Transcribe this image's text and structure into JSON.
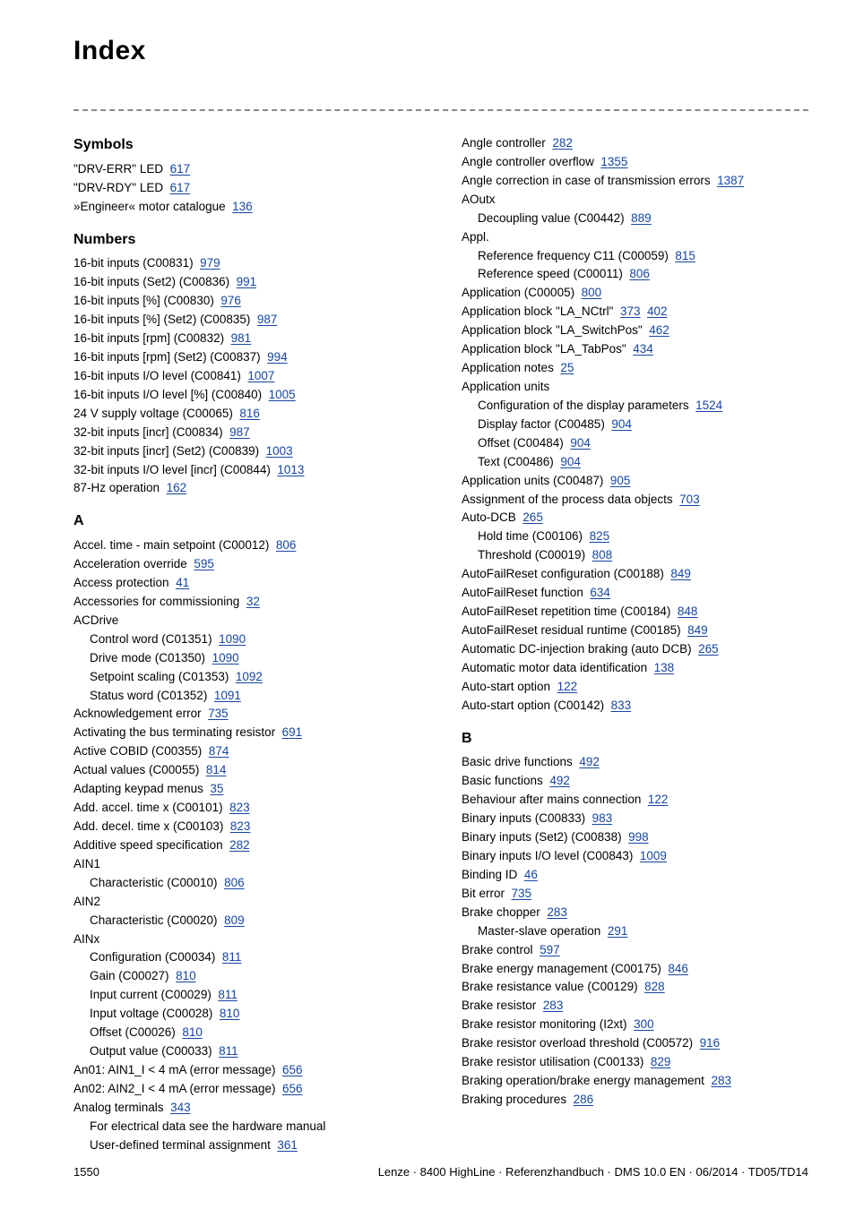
{
  "title": "Index",
  "footer": {
    "page": "1550",
    "doc": "Lenze · 8400 HighLine · Referenzhandbuch · DMS 10.0 EN · 06/2014 · TD05/TD14"
  },
  "colors": {
    "link": "#1646a0",
    "text": "#000000",
    "bg": "#ffffff",
    "dash": "#888888"
  },
  "left": [
    {
      "type": "head",
      "text": "Symbols"
    },
    {
      "type": "line",
      "text": "\"DRV-ERR\" LED",
      "refs": [
        "617"
      ]
    },
    {
      "type": "line",
      "text": "\"DRV-RDY\" LED",
      "refs": [
        "617"
      ]
    },
    {
      "type": "line",
      "text": "»Engineer« motor catalogue",
      "refs": [
        "136"
      ]
    },
    {
      "type": "head",
      "text": "Numbers"
    },
    {
      "type": "line",
      "text": "16-bit inputs (C00831)",
      "refs": [
        "979"
      ]
    },
    {
      "type": "line",
      "text": "16-bit inputs (Set2) (C00836)",
      "refs": [
        "991"
      ]
    },
    {
      "type": "line",
      "text": "16-bit inputs [%] (C00830)",
      "refs": [
        "976"
      ]
    },
    {
      "type": "line",
      "text": "16-bit inputs [%] (Set2) (C00835)",
      "refs": [
        "987"
      ]
    },
    {
      "type": "line",
      "text": "16-bit inputs [rpm] (C00832)",
      "refs": [
        "981"
      ]
    },
    {
      "type": "line",
      "text": "16-bit inputs [rpm] (Set2) (C00837)",
      "refs": [
        "994"
      ]
    },
    {
      "type": "line",
      "text": "16-bit inputs I/O level (C00841)",
      "refs": [
        "1007"
      ]
    },
    {
      "type": "line",
      "text": "16-bit inputs I/O level [%] (C00840)",
      "refs": [
        "1005"
      ]
    },
    {
      "type": "line",
      "text": "24 V supply voltage (C00065)",
      "refs": [
        "816"
      ]
    },
    {
      "type": "line",
      "text": "32-bit inputs [incr] (C00834)",
      "refs": [
        "987"
      ]
    },
    {
      "type": "line",
      "text": "32-bit inputs [incr] (Set2) (C00839)",
      "refs": [
        "1003"
      ]
    },
    {
      "type": "line",
      "text": "32-bit inputs I/O level [incr] (C00844)",
      "refs": [
        "1013"
      ]
    },
    {
      "type": "line",
      "text": "87-Hz operation",
      "refs": [
        "162"
      ]
    },
    {
      "type": "head",
      "text": "A"
    },
    {
      "type": "line",
      "text": "Accel. time - main setpoint (C00012)",
      "refs": [
        "806"
      ]
    },
    {
      "type": "line",
      "text": "Acceleration override",
      "refs": [
        "595"
      ]
    },
    {
      "type": "line",
      "text": "Access protection",
      "refs": [
        "41"
      ]
    },
    {
      "type": "line",
      "text": "Accessories for commissioning",
      "refs": [
        "32"
      ]
    },
    {
      "type": "line",
      "text": "ACDrive"
    },
    {
      "type": "sub",
      "text": "Control word (C01351)",
      "refs": [
        "1090"
      ]
    },
    {
      "type": "sub",
      "text": "Drive mode (C01350)",
      "refs": [
        "1090"
      ]
    },
    {
      "type": "sub",
      "text": "Setpoint scaling (C01353)",
      "refs": [
        "1092"
      ]
    },
    {
      "type": "sub",
      "text": "Status word (C01352)",
      "refs": [
        "1091"
      ]
    },
    {
      "type": "line",
      "text": "Acknowledgement error",
      "refs": [
        "735"
      ]
    },
    {
      "type": "line",
      "text": "Activating the bus terminating resistor",
      "refs": [
        "691"
      ]
    },
    {
      "type": "line",
      "text": "Active COBID (C00355)",
      "refs": [
        "874"
      ]
    },
    {
      "type": "line",
      "text": "Actual values (C00055)",
      "refs": [
        "814"
      ]
    },
    {
      "type": "line",
      "text": "Adapting keypad menus",
      "refs": [
        "35"
      ]
    },
    {
      "type": "line",
      "text": "Add. accel. time x (C00101)",
      "refs": [
        "823"
      ]
    },
    {
      "type": "line",
      "text": "Add. decel. time x (C00103)",
      "refs": [
        "823"
      ]
    },
    {
      "type": "line",
      "text": "Additive speed specification",
      "refs": [
        "282"
      ]
    },
    {
      "type": "line",
      "text": "AIN1"
    },
    {
      "type": "sub",
      "text": "Characteristic (C00010)",
      "refs": [
        "806"
      ]
    },
    {
      "type": "line",
      "text": "AIN2"
    },
    {
      "type": "sub",
      "text": "Characteristic (C00020)",
      "refs": [
        "809"
      ]
    },
    {
      "type": "line",
      "text": "AINx"
    },
    {
      "type": "sub",
      "text": "Configuration (C00034)",
      "refs": [
        "811"
      ]
    },
    {
      "type": "sub",
      "text": "Gain (C00027)",
      "refs": [
        "810"
      ]
    },
    {
      "type": "sub",
      "text": "Input current (C00029)",
      "refs": [
        "811"
      ]
    },
    {
      "type": "sub",
      "text": "Input voltage (C00028)",
      "refs": [
        "810"
      ]
    },
    {
      "type": "sub",
      "text": "Offset (C00026)",
      "refs": [
        "810"
      ]
    },
    {
      "type": "sub",
      "text": "Output value (C00033)",
      "refs": [
        "811"
      ]
    },
    {
      "type": "line",
      "text": "An01: AIN1_I < 4 mA (error message)",
      "refs": [
        "656"
      ]
    },
    {
      "type": "line",
      "text": "An02: AIN2_I < 4 mA (error message)",
      "refs": [
        "656"
      ]
    },
    {
      "type": "line",
      "text": "Analog terminals",
      "refs": [
        "343"
      ]
    },
    {
      "type": "sub",
      "text": "For electrical data see the hardware manual"
    },
    {
      "type": "sub",
      "text": "User-defined terminal assignment",
      "refs": [
        "361"
      ]
    }
  ],
  "right": [
    {
      "type": "line",
      "text": "Angle controller",
      "refs": [
        "282"
      ]
    },
    {
      "type": "line",
      "text": "Angle controller overflow",
      "refs": [
        "1355"
      ]
    },
    {
      "type": "line",
      "text": "Angle correction in case of transmission errors",
      "refs": [
        "1387"
      ]
    },
    {
      "type": "line",
      "text": "AOutx"
    },
    {
      "type": "sub",
      "text": "Decoupling value (C00442)",
      "refs": [
        "889"
      ]
    },
    {
      "type": "line",
      "text": "Appl."
    },
    {
      "type": "sub",
      "text": "Reference frequency C11 (C00059)",
      "refs": [
        "815"
      ]
    },
    {
      "type": "sub",
      "text": "Reference speed (C00011)",
      "refs": [
        "806"
      ]
    },
    {
      "type": "line",
      "text": "Application (C00005)",
      "refs": [
        "800"
      ]
    },
    {
      "type": "line",
      "text": "Application block \"LA_NCtrl\"",
      "refs": [
        "373",
        "402"
      ]
    },
    {
      "type": "line",
      "text": "Application block \"LA_SwitchPos\"",
      "refs": [
        "462"
      ]
    },
    {
      "type": "line",
      "text": "Application block \"LA_TabPos\"",
      "refs": [
        "434"
      ]
    },
    {
      "type": "line",
      "text": "Application notes",
      "refs": [
        "25"
      ]
    },
    {
      "type": "line",
      "text": "Application units"
    },
    {
      "type": "sub",
      "text": "Configuration of the display parameters",
      "refs": [
        "1524"
      ]
    },
    {
      "type": "sub",
      "text": "Display factor (C00485)",
      "refs": [
        "904"
      ]
    },
    {
      "type": "sub",
      "text": "Offset (C00484)",
      "refs": [
        "904"
      ]
    },
    {
      "type": "sub",
      "text": "Text (C00486)",
      "refs": [
        "904"
      ]
    },
    {
      "type": "line",
      "text": "Application units (C00487)",
      "refs": [
        "905"
      ]
    },
    {
      "type": "line",
      "text": "Assignment of the process data objects",
      "refs": [
        "703"
      ]
    },
    {
      "type": "line",
      "text": "Auto-DCB",
      "refs": [
        "265"
      ]
    },
    {
      "type": "sub",
      "text": "Hold time (C00106)",
      "refs": [
        "825"
      ]
    },
    {
      "type": "sub",
      "text": "Threshold (C00019)",
      "refs": [
        "808"
      ]
    },
    {
      "type": "line",
      "text": "AutoFailReset configuration (C00188)",
      "refs": [
        "849"
      ]
    },
    {
      "type": "line",
      "text": "AutoFailReset function",
      "refs": [
        "634"
      ]
    },
    {
      "type": "line",
      "text": "AutoFailReset repetition time (C00184)",
      "refs": [
        "848"
      ]
    },
    {
      "type": "line",
      "text": "AutoFailReset residual runtime (C00185)",
      "refs": [
        "849"
      ]
    },
    {
      "type": "line",
      "text": "Automatic DC-injection braking (auto DCB)",
      "refs": [
        "265"
      ]
    },
    {
      "type": "line",
      "text": "Automatic motor data identification",
      "refs": [
        "138"
      ]
    },
    {
      "type": "line",
      "text": "Auto-start option",
      "refs": [
        "122"
      ]
    },
    {
      "type": "line",
      "text": "Auto-start option (C00142)",
      "refs": [
        "833"
      ]
    },
    {
      "type": "head",
      "text": "B"
    },
    {
      "type": "line",
      "text": "Basic drive functions",
      "refs": [
        "492"
      ]
    },
    {
      "type": "line",
      "text": "Basic functions",
      "refs": [
        "492"
      ]
    },
    {
      "type": "line",
      "text": "Behaviour after mains connection",
      "refs": [
        "122"
      ]
    },
    {
      "type": "line",
      "text": "Binary inputs (C00833)",
      "refs": [
        "983"
      ]
    },
    {
      "type": "line",
      "text": "Binary inputs (Set2) (C00838)",
      "refs": [
        "998"
      ]
    },
    {
      "type": "line",
      "text": "Binary inputs I/O level (C00843)",
      "refs": [
        "1009"
      ]
    },
    {
      "type": "line",
      "text": "Binding ID",
      "refs": [
        "46"
      ]
    },
    {
      "type": "line",
      "text": "Bit error",
      "refs": [
        "735"
      ]
    },
    {
      "type": "line",
      "text": "Brake chopper",
      "refs": [
        "283"
      ]
    },
    {
      "type": "sub",
      "text": "Master-slave operation",
      "refs": [
        "291"
      ]
    },
    {
      "type": "line",
      "text": "Brake control",
      "refs": [
        "597"
      ]
    },
    {
      "type": "line",
      "text": "Brake energy management (C00175)",
      "refs": [
        "846"
      ]
    },
    {
      "type": "line",
      "text": "Brake resistance value (C00129)",
      "refs": [
        "828"
      ]
    },
    {
      "type": "line",
      "text": "Brake resistor",
      "refs": [
        "283"
      ]
    },
    {
      "type": "line",
      "text": "Brake resistor monitoring (I2xt)",
      "refs": [
        "300"
      ]
    },
    {
      "type": "line",
      "text": "Brake resistor overload threshold (C00572)",
      "refs": [
        "916"
      ]
    },
    {
      "type": "line",
      "text": "Brake resistor utilisation (C00133)",
      "refs": [
        "829"
      ]
    },
    {
      "type": "line",
      "text": "Braking operation/brake energy management",
      "refs": [
        "283"
      ]
    },
    {
      "type": "line",
      "text": "Braking procedures",
      "refs": [
        "286"
      ]
    }
  ]
}
